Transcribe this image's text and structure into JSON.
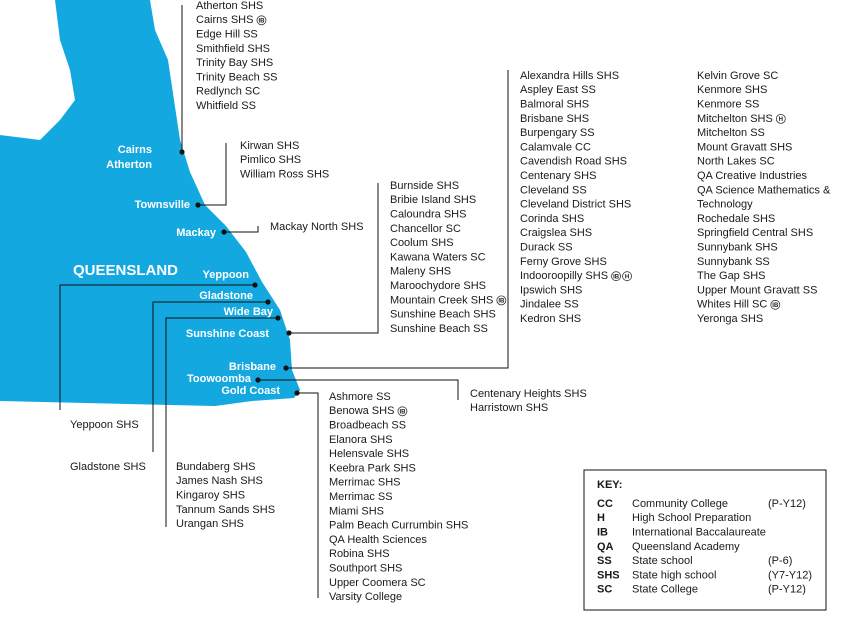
{
  "map": {
    "state_label": "QUEENSLAND",
    "regions": [
      {
        "labels": [
          "Cairns",
          "Atherton"
        ],
        "schools": [
          {
            "name": "Atherton SHS"
          },
          {
            "name": "Cairns SHS",
            "badges": [
              "IB"
            ]
          },
          {
            "name": "Edge Hill SS"
          },
          {
            "name": "Smithfield SHS"
          },
          {
            "name": "Trinity Bay SHS"
          },
          {
            "name": "Trinity Beach SS"
          },
          {
            "name": "Redlynch SC"
          },
          {
            "name": "Whitfield SS"
          }
        ]
      },
      {
        "labels": [
          "Townsville"
        ],
        "schools": [
          {
            "name": "Kirwan SHS"
          },
          {
            "name": "Pimlico SHS"
          },
          {
            "name": "William Ross SHS"
          }
        ]
      },
      {
        "labels": [
          "Mackay"
        ],
        "schools": [
          {
            "name": "Mackay North SHS"
          }
        ]
      },
      {
        "labels": [
          "Yeppoon"
        ],
        "schools": [
          {
            "name": "Yeppoon SHS"
          }
        ]
      },
      {
        "labels": [
          "Gladstone"
        ],
        "schools": [
          {
            "name": "Gladstone SHS"
          }
        ]
      },
      {
        "labels": [
          "Wide Bay"
        ],
        "schools": [
          {
            "name": "Bundaberg SHS"
          },
          {
            "name": "James Nash SHS"
          },
          {
            "name": "Kingaroy SHS"
          },
          {
            "name": "Tannum Sands SHS"
          },
          {
            "name": "Urangan SHS"
          }
        ]
      },
      {
        "labels": [
          "Sunshine Coast"
        ],
        "schools": [
          {
            "name": "Burnside SHS"
          },
          {
            "name": "Bribie Island SHS"
          },
          {
            "name": "Caloundra SHS"
          },
          {
            "name": "Chancellor SC"
          },
          {
            "name": "Coolum SHS"
          },
          {
            "name": "Kawana Waters SC"
          },
          {
            "name": "Maleny SHS"
          },
          {
            "name": "Maroochydore SHS"
          },
          {
            "name": "Mountain Creek SHS",
            "badges": [
              "IB"
            ]
          },
          {
            "name": "Sunshine Beach SHS"
          },
          {
            "name": "Sunshine Beach SS"
          }
        ]
      },
      {
        "labels": [
          "Brisbane"
        ],
        "schools": [
          {
            "name": "Alexandra Hills SHS"
          },
          {
            "name": "Aspley East SS"
          },
          {
            "name": "Balmoral SHS"
          },
          {
            "name": "Brisbane SHS"
          },
          {
            "name": "Burpengary SS"
          },
          {
            "name": "Calamvale CC"
          },
          {
            "name": "Cavendish Road SHS"
          },
          {
            "name": "Centenary SHS"
          },
          {
            "name": "Cleveland SS"
          },
          {
            "name": "Cleveland District SHS"
          },
          {
            "name": "Corinda SHS"
          },
          {
            "name": "Craigslea SHS"
          },
          {
            "name": "Durack SS"
          },
          {
            "name": "Ferny Grove SHS"
          },
          {
            "name": "Indooroopilly SHS",
            "badges": [
              "IB",
              "H"
            ]
          },
          {
            "name": "Ipswich SHS"
          },
          {
            "name": "Jindalee SS"
          },
          {
            "name": "Kedron SHS"
          },
          {
            "name": "Kelvin Grove SC"
          },
          {
            "name": "Kenmore SHS"
          },
          {
            "name": "Kenmore SS"
          },
          {
            "name": "Mitchelton SHS",
            "badges": [
              "H"
            ]
          },
          {
            "name": "Mitchelton SS"
          },
          {
            "name": "Mount Gravatt SHS"
          },
          {
            "name": "North Lakes SC"
          },
          {
            "name": "QA Creative Industries"
          },
          {
            "name": "QA Science Mathematics &"
          },
          {
            "name": "Technology"
          },
          {
            "name": "Rochedale SHS"
          },
          {
            "name": "Springfield Central SHS"
          },
          {
            "name": "Sunnybank SHS"
          },
          {
            "name": "Sunnybank SS"
          },
          {
            "name": "The Gap SHS"
          },
          {
            "name": "Upper Mount Gravatt SS"
          },
          {
            "name": "Whites Hill SC",
            "badges": [
              "IB"
            ]
          },
          {
            "name": "Yeronga SHS"
          }
        ]
      },
      {
        "labels": [
          "Toowoomba"
        ],
        "schools": [
          {
            "name": "Centenary Heights SHS"
          },
          {
            "name": "Harristown SHS"
          }
        ]
      },
      {
        "labels": [
          "Gold Coast"
        ],
        "schools": [
          {
            "name": "Ashmore SS"
          },
          {
            "name": "Benowa SHS",
            "badges": [
              "IB"
            ]
          },
          {
            "name": "Broadbeach SS"
          },
          {
            "name": "Elanora SHS"
          },
          {
            "name": "Helensvale SHS"
          },
          {
            "name": "Keebra Park SHS"
          },
          {
            "name": "Merrimac SHS"
          },
          {
            "name": "Merrimac SS"
          },
          {
            "name": "Miami SHS"
          },
          {
            "name": "Palm Beach Currumbin SHS"
          },
          {
            "name": "QA Health Sciences"
          },
          {
            "name": "Robina SHS"
          },
          {
            "name": "Southport SHS"
          },
          {
            "name": "Upper Coomera SC"
          },
          {
            "name": "Varsity College"
          }
        ]
      }
    ]
  },
  "key": {
    "title": "KEY:",
    "rows": [
      [
        "CC",
        "Community College",
        "(P-Y12)"
      ],
      [
        "H",
        "High School Preparation",
        null
      ],
      [
        "IB",
        "International Baccalaureate",
        null
      ],
      [
        "QA",
        "Queensland Academy",
        null
      ],
      [
        "SS",
        "State school",
        "(P-6)"
      ],
      [
        "SHS",
        "State high school",
        "(Y7-Y12)"
      ],
      [
        "SC",
        "State College",
        "(P-Y12)"
      ]
    ]
  }
}
